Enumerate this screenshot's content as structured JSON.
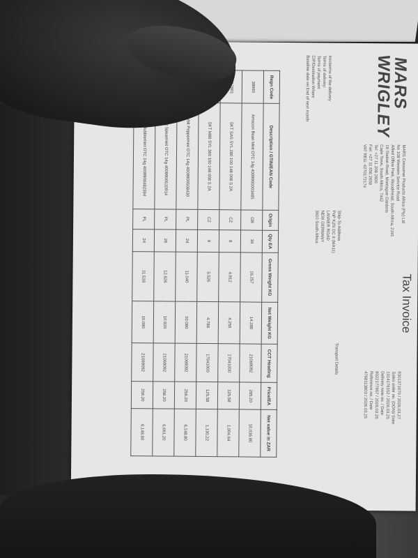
{
  "logo": "MARS WRIGLEY",
  "title": "Tax Invoice",
  "seller": [
    "MARS Consumer Products Africa (Pty) Ltd",
    "No 108 Western Service Road",
    "Allied Office Park, Woodmead, South Africa, 2191",
    "16 Station Road, Montague Gardens",
    "Cape Town, South Africa, 7442",
    "Tel: +27 11 208 2600",
    "Fax: +27 11 656 2658",
    "VAT REG: 4270172174"
  ],
  "refs": [
    "9301371670 / 2026.03.27",
    "Sales order no. (DON)/ Date",
    "1014176152 / 2026.03.25",
    "Delivery note no. / Date",
    "8022177857 / 2026.03.26",
    "Reference no. / Date",
    "4768113803 / 2026.03.25"
  ],
  "ship_to": {
    "label": "Ship-To Address",
    "lines": [
      "PnP KZN DC II (MA11)",
      "LANNER ROAD",
      "NEW GERMANY",
      "3610 South Africa"
    ]
  },
  "transport": "Transport Details",
  "terms": [
    "Incoterms of the delivery",
    "Terms of delivery:",
    "Terms of payment:",
    "CIP/Destination Where",
    "Baseline date on End of next month"
  ],
  "table": {
    "headers": [
      "Regn Code",
      "Description / GTIN/EAN Code",
      "Origin",
      "Qty EA",
      "Gross Weight KG",
      "Net Weight KG",
      "CCT Heading",
      "Price/EA",
      "Net value in ZAR"
    ],
    "rows": [
      [
        "38960",
        "Amazon Bean Mint OTC 14g 4009900003485",
        "GB",
        "34",
        "16.257",
        "14.280",
        "21069092",
        "295.20",
        "10,036.80"
      ],
      [
        "312801",
        "SKT SAS SYL 280 100 148 008 S 2A",
        "CZ",
        "8",
        "4.912",
        "4.256",
        "17041000",
        "125.58",
        "1,004.64"
      ],
      [
        "366651",
        "SKT M86 SYL 360 100 148 008 S 2A",
        "CZ",
        "9",
        "5.526",
        "4.788",
        "17041000",
        "125.58",
        "1,130.22"
      ],
      [
        "377928",
        "Orbit Peppermint OTC 14g 4009900508430",
        "PL",
        "24",
        "11.040",
        "10.080",
        "21069092",
        "256.20",
        "6,148.80"
      ],
      [
        "377929",
        "Orbit Spearmint OTC 14g 4009900510914",
        "PL",
        "26",
        "12.626",
        "10.920",
        "21069092",
        "256.20",
        "6,661.20"
      ],
      [
        "377927",
        "Orbit Bubblemint OTC 14g 4009900482394",
        "PL",
        "24",
        "11.518",
        "10.080",
        "21069092",
        "256.20",
        "6,148.80"
      ]
    ]
  }
}
